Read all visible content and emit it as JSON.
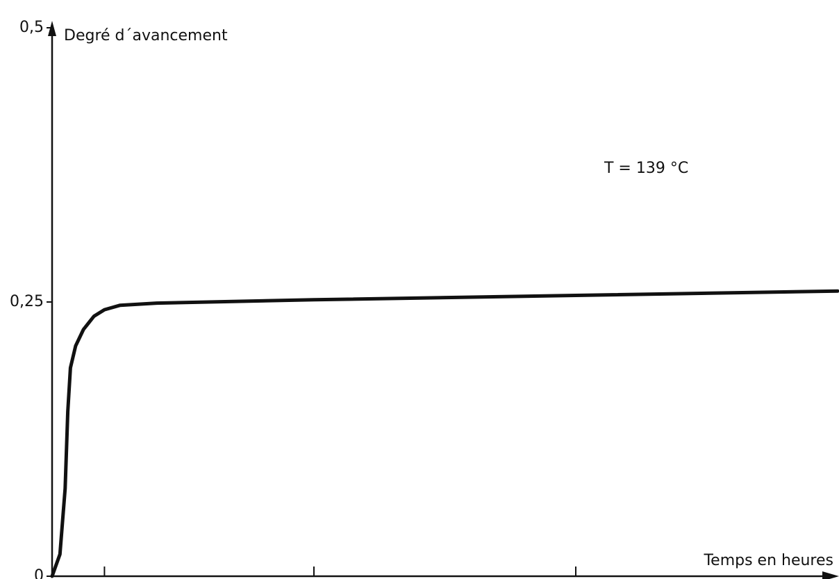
{
  "chart_data": {
    "type": "line",
    "y_label": "Degré d´avancement",
    "x_label": "Temps en heures",
    "annotation": "T = 139 °C",
    "x": [
      0,
      0.15,
      0.25,
      0.3,
      0.35,
      0.45,
      0.6,
      0.8,
      1,
      1.3,
      2,
      5,
      10,
      15
    ],
    "values": [
      0,
      0.02,
      0.08,
      0.15,
      0.19,
      0.21,
      0.225,
      0.237,
      0.243,
      0.247,
      0.249,
      0.252,
      0.256,
      0.26
    ],
    "color": "#111111",
    "xlim": [
      0,
      15
    ],
    "xticks": [
      1,
      5,
      10
    ],
    "ylim": [
      0,
      0.5
    ],
    "yticks": [
      0,
      {
        "value": 0.25,
        "label": "0,25"
      },
      {
        "value": 0.5,
        "label": "0,5"
      }
    ]
  }
}
